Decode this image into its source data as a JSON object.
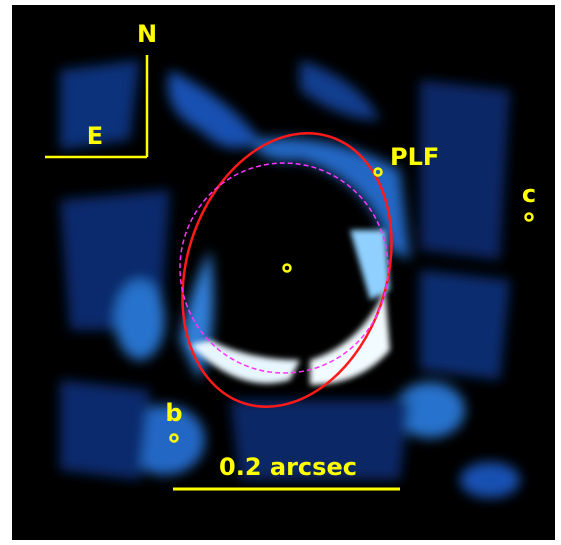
{
  "compass": {
    "north": "N",
    "east": "E"
  },
  "labels": {
    "plf": "PLF",
    "c": "c",
    "b": "b"
  },
  "scale_bar": {
    "label": "0.2 arcsec"
  }
}
